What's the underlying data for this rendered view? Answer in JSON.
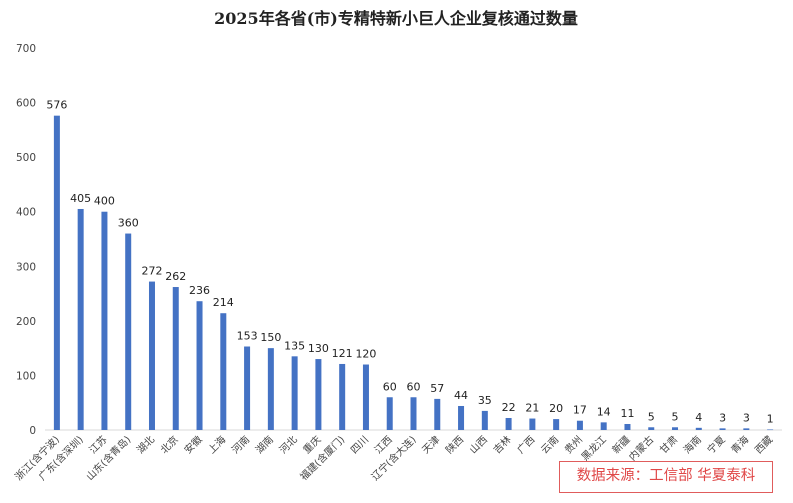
{
  "chart_data": {
    "type": "bar",
    "title": "2025年各省(市)专精特新小巨人企业复核通过数量",
    "xlabel": "",
    "ylabel": "",
    "ylim": [
      0,
      700
    ],
    "yticks": [
      0,
      100,
      200,
      300,
      400,
      500,
      600,
      700
    ],
    "grid": "none",
    "bar_color": "#4472C4",
    "categories": [
      "浙江(含宁波)",
      "广东(含深圳)",
      "江苏",
      "山东(含青岛)",
      "湖北",
      "北京",
      "安徽",
      "上海",
      "河南",
      "湖南",
      "河北",
      "重庆",
      "福建(含厦门)",
      "四川",
      "江西",
      "辽宁(含大连)",
      "天津",
      "陕西",
      "山西",
      "吉林",
      "广西",
      "云南",
      "贵州",
      "黑龙江",
      "新疆",
      "内蒙古",
      "甘肃",
      "海南",
      "宁夏",
      "青海",
      "西藏"
    ],
    "values": [
      576,
      405,
      400,
      360,
      272,
      262,
      236,
      214,
      153,
      150,
      135,
      130,
      121,
      120,
      60,
      60,
      57,
      44,
      35,
      22,
      21,
      20,
      17,
      14,
      11,
      5,
      5,
      4,
      3,
      3,
      1
    ]
  },
  "source_note": "数据来源：工信部 华夏泰科"
}
